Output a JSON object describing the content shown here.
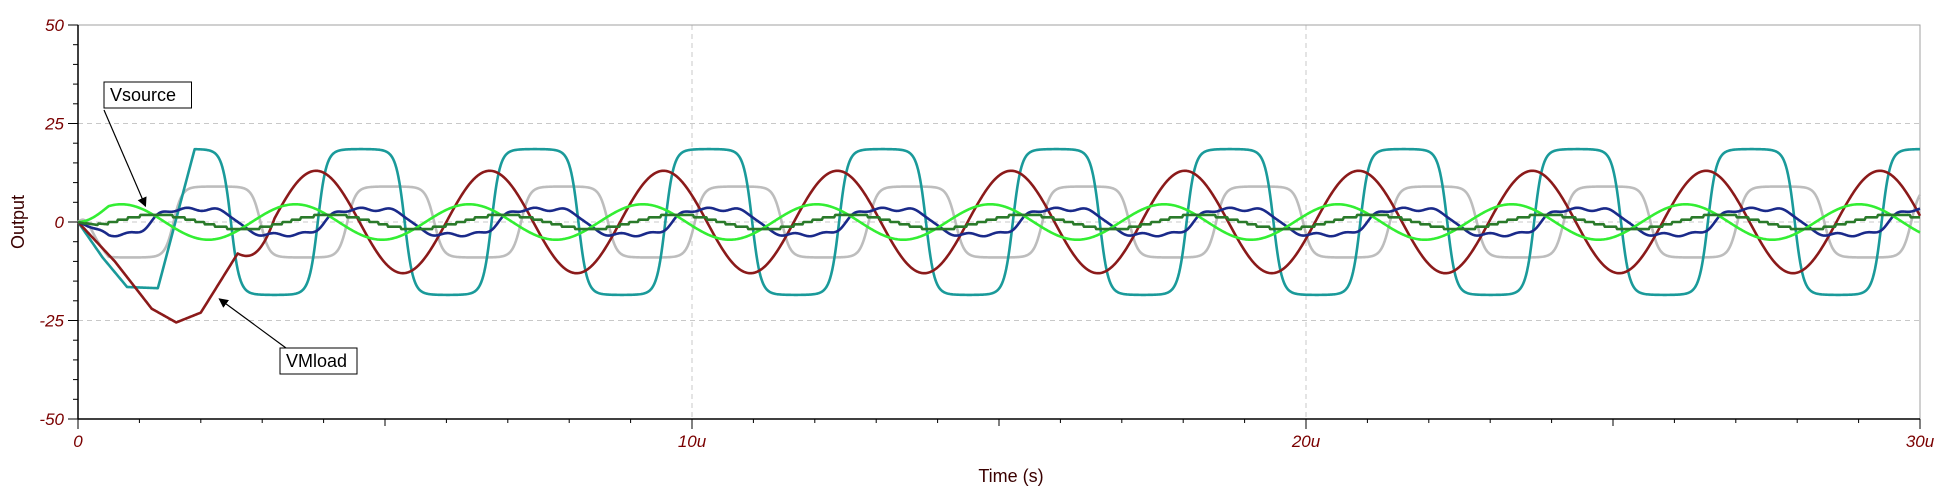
{
  "chart_data": {
    "type": "line",
    "title": "",
    "xlabel": "Time (s)",
    "ylabel": "Output",
    "xlim": [
      0,
      30
    ],
    "ylim": [
      -50,
      50
    ],
    "x_ticks": [
      {
        "value": 0,
        "label": "0"
      },
      {
        "value": 10,
        "label": "10u"
      },
      {
        "value": 20,
        "label": "20u"
      },
      {
        "value": 30,
        "label": "30u"
      }
    ],
    "y_ticks": [
      {
        "value": 50,
        "label": "50"
      },
      {
        "value": 25,
        "label": "25"
      },
      {
        "value": 0,
        "label": "0"
      },
      {
        "value": -25,
        "label": "-25"
      },
      {
        "value": -50,
        "label": "-50"
      }
    ],
    "grid": true,
    "period": 2.83,
    "series": [
      {
        "name": "",
        "color": "#bdbdbd",
        "shape": "square",
        "amplitude": 9,
        "phase": 0.55
      },
      {
        "name": "",
        "color": "#1a9a9a",
        "shape": "square",
        "amplitude": 18.5,
        "phase": 0.38,
        "initial": [
          [
            0,
            0
          ],
          [
            0.4,
            -9
          ],
          [
            0.8,
            -16.5
          ],
          [
            1.3,
            -16.8
          ]
        ]
      },
      {
        "name": "VMload",
        "color": "#8b1a1a",
        "shape": "sine",
        "amplitude": 13,
        "phase": 0.12,
        "initial": [
          [
            0,
            0
          ],
          [
            0.6,
            -10
          ],
          [
            1.2,
            -22
          ],
          [
            1.6,
            -25.5
          ],
          [
            2.0,
            -23
          ],
          [
            2.6,
            -8
          ]
        ]
      },
      {
        "name": "",
        "color": "#1a2a8a",
        "shape": "stepwave",
        "amplitude": 3.8,
        "phase": 0.42
      },
      {
        "name": "Vsource",
        "color": "#33ee33",
        "shape": "sine",
        "amplitude": 4.5,
        "phase": 0.0
      },
      {
        "name": "",
        "color": "#2a7a2a",
        "shape": "stair",
        "amplitude": 1.8,
        "phase": 0.2
      }
    ],
    "annotations": [
      {
        "text": "Vsource",
        "target_x": 1.1,
        "target_y": 4.0,
        "anchor": "top-left"
      },
      {
        "text": "VMload",
        "target_x": 2.3,
        "target_y": -19.5,
        "anchor": "bottom-left"
      }
    ]
  }
}
